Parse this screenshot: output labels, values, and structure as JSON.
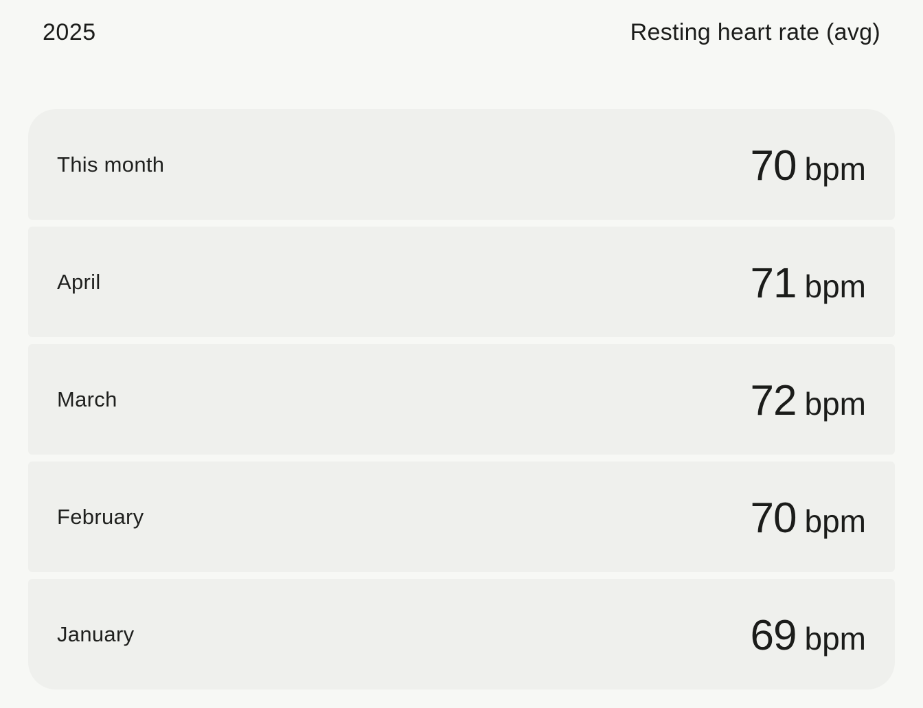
{
  "header": {
    "year": "2025",
    "metric": "Resting heart rate (avg)"
  },
  "rows": [
    {
      "label": "This month",
      "value": "70",
      "unit": "bpm"
    },
    {
      "label": "April",
      "value": "71",
      "unit": "bpm"
    },
    {
      "label": "March",
      "value": "72",
      "unit": "bpm"
    },
    {
      "label": "February",
      "value": "70",
      "unit": "bpm"
    },
    {
      "label": "January",
      "value": "69",
      "unit": "bpm"
    }
  ],
  "colors": {
    "background": "#f7f8f5",
    "card": "#eff0ed",
    "text": "#1b1c1a"
  }
}
